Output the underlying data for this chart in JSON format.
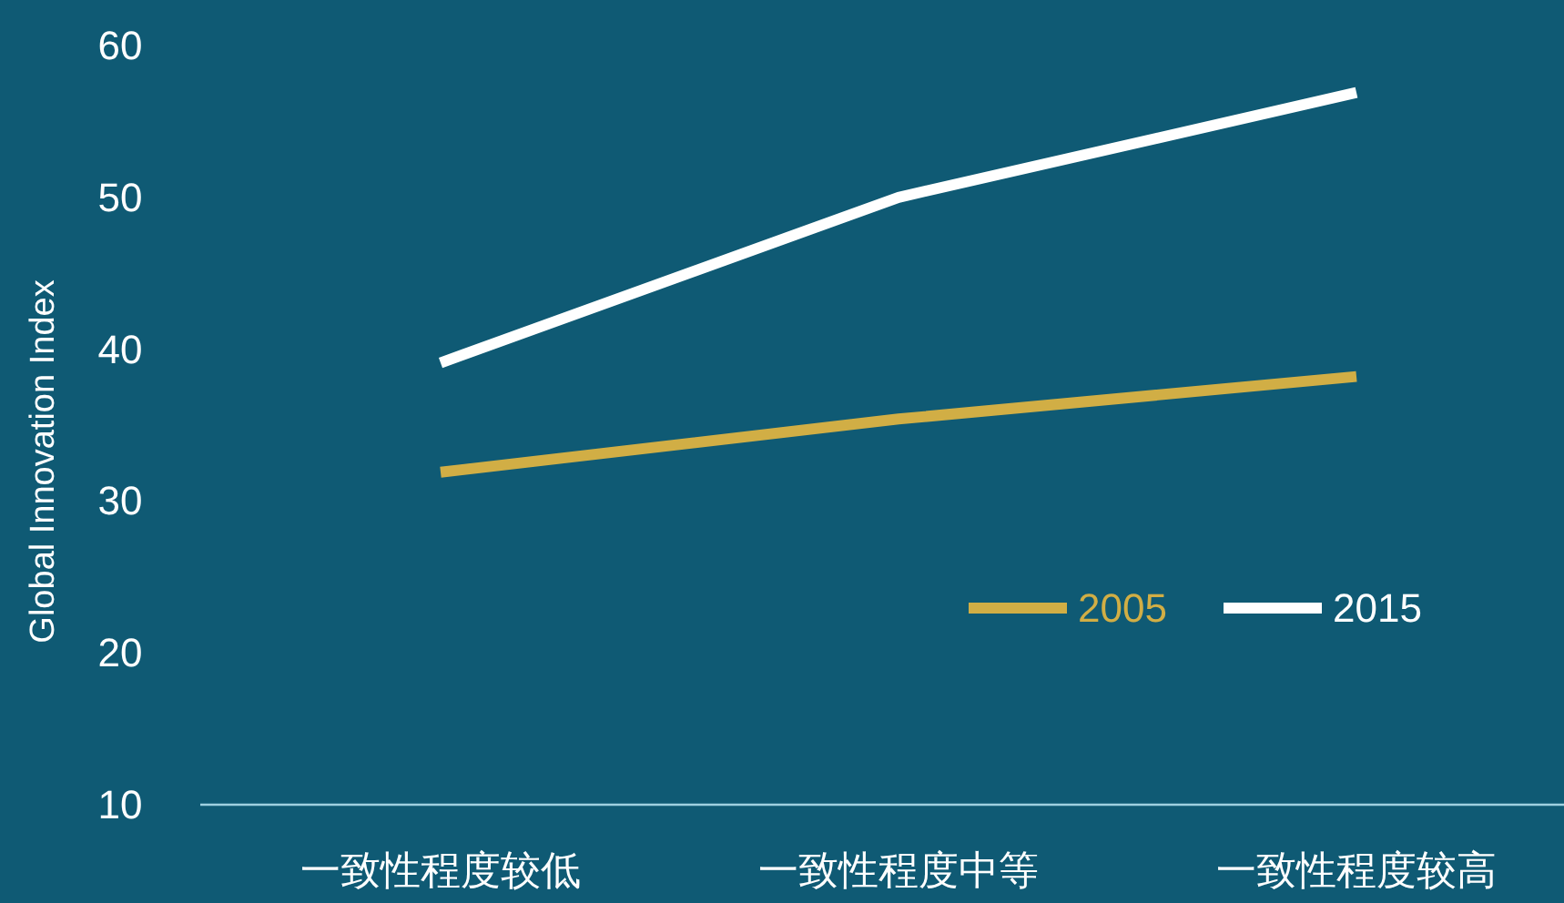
{
  "chart_data": {
    "type": "line",
    "ylabel": "Global Innovation Index",
    "categories": [
      "一致性程度较低",
      "一致性程度中等",
      "一致性程度较高"
    ],
    "series": [
      {
        "name": "2005",
        "color": "#d1ae45",
        "values": [
          31.9,
          35.4,
          38.2
        ]
      },
      {
        "name": "2015",
        "color": "#ffffff",
        "values": [
          39.1,
          50.0,
          56.9
        ]
      }
    ],
    "ylim": [
      10,
      60
    ],
    "yticks": [
      10,
      20,
      30,
      40,
      50,
      60
    ],
    "grid": false,
    "legend": "right",
    "marker": "none",
    "line_style": "solid"
  }
}
